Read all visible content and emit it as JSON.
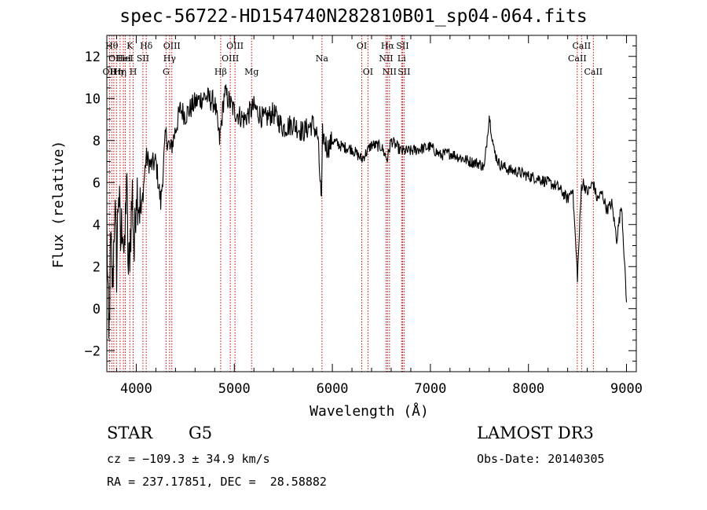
{
  "chart_data": {
    "type": "line",
    "title": "spec-56722-HD154740N282810B01_sp04-064.fits",
    "xlabel": "Wavelength (Å)",
    "ylabel": "Flux (relative)",
    "xlim": [
      3700,
      9100
    ],
    "ylim": [
      -3,
      13
    ],
    "xticks": [
      4000,
      5000,
      6000,
      7000,
      8000,
      9000
    ],
    "yticks": [
      -2,
      0,
      2,
      4,
      6,
      8,
      10,
      12
    ],
    "grid": false,
    "series": [
      {
        "name": "spectrum",
        "x": [
          3700,
          3720,
          3740,
          3760,
          3780,
          3800,
          3820,
          3840,
          3860,
          3880,
          3900,
          3920,
          3940,
          3960,
          3980,
          4000,
          4050,
          4100,
          4150,
          4200,
          4250,
          4300,
          4350,
          4400,
          4450,
          4500,
          4600,
          4700,
          4800,
          4850,
          4900,
          5000,
          5100,
          5200,
          5300,
          5400,
          5500,
          5600,
          5700,
          5800,
          5850,
          5890,
          5900,
          5950,
          6000,
          6100,
          6200,
          6300,
          6400,
          6500,
          6560,
          6600,
          6700,
          6800,
          6900,
          7000,
          7100,
          7200,
          7300,
          7400,
          7500,
          7550,
          7600,
          7650,
          7700,
          7800,
          7900,
          8000,
          8100,
          8200,
          8300,
          8400,
          8450,
          8500,
          8540,
          8560,
          8600,
          8660,
          8700,
          8750,
          8800,
          8850,
          8900,
          8950,
          9000
        ],
        "values": [
          4.0,
          -2.0,
          3.0,
          1.0,
          5.0,
          2.0,
          6.0,
          3.0,
          4.5,
          2.0,
          6.5,
          1.5,
          3.5,
          5.5,
          2.5,
          6.0,
          4.5,
          7.2,
          6.8,
          7.0,
          5.0,
          8.3,
          7.5,
          8.5,
          9.5,
          9.2,
          9.8,
          10.1,
          9.8,
          8.0,
          10.3,
          9.4,
          9.0,
          9.6,
          9.0,
          9.3,
          8.6,
          8.8,
          8.4,
          8.8,
          8.2,
          4.9,
          8.3,
          7.6,
          8.0,
          7.7,
          7.6,
          7.1,
          7.8,
          7.7,
          7.1,
          8.0,
          7.5,
          7.5,
          7.6,
          7.7,
          7.3,
          7.4,
          7.2,
          7.0,
          6.9,
          6.7,
          9.2,
          7.5,
          6.9,
          6.6,
          6.5,
          6.3,
          6.2,
          6.0,
          5.8,
          5.2,
          5.8,
          1.5,
          5.8,
          6.0,
          5.5,
          6.0,
          5.2,
          5.5,
          4.7,
          5.0,
          3.3,
          5.0,
          0.3
        ]
      }
    ],
    "lines": [
      {
        "x": 3727,
        "label": "OII",
        "row": 3
      },
      {
        "x": 3750,
        "label": "Hθ",
        "row": 1
      },
      {
        "x": 3771,
        "label": "OI",
        "row": 2
      },
      {
        "x": 3798,
        "label": "Hη",
        "row": 3
      },
      {
        "x": 3835,
        "label": "Hη",
        "row": 3
      },
      {
        "x": 3869,
        "label": "HeI",
        "row": 2
      },
      {
        "x": 3889,
        "label": "HeI",
        "row": 2
      },
      {
        "x": 3934,
        "label": "K",
        "row": 1
      },
      {
        "x": 3969,
        "label": "H",
        "row": 3
      },
      {
        "x": 4068,
        "label": "SII",
        "row": 2
      },
      {
        "x": 4102,
        "label": "Hδ",
        "row": 1
      },
      {
        "x": 4304,
        "label": "G",
        "row": 3
      },
      {
        "x": 4340,
        "label": "Hγ",
        "row": 2
      },
      {
        "x": 4363,
        "label": "OIII",
        "row": 1
      },
      {
        "x": 4861,
        "label": "Hβ",
        "row": 3
      },
      {
        "x": 4959,
        "label": "OIII",
        "row": 2
      },
      {
        "x": 5007,
        "label": "OIII",
        "row": 1
      },
      {
        "x": 5176,
        "label": "Mg",
        "row": 3
      },
      {
        "x": 5894,
        "label": "Na",
        "row": 2
      },
      {
        "x": 6300,
        "label": "OI",
        "row": 1
      },
      {
        "x": 6363,
        "label": "OI",
        "row": 3
      },
      {
        "x": 6548,
        "label": "NII",
        "row": 2
      },
      {
        "x": 6563,
        "label": "Hα",
        "row": 1
      },
      {
        "x": 6583,
        "label": "NII",
        "row": 3
      },
      {
        "x": 6707,
        "label": "Li",
        "row": 2
      },
      {
        "x": 6716,
        "label": "SII",
        "row": 1
      },
      {
        "x": 6731,
        "label": "SII",
        "row": 3
      },
      {
        "x": 8498,
        "label": "CaII",
        "row": 2
      },
      {
        "x": 8542,
        "label": "CaII",
        "row": 1
      },
      {
        "x": 8662,
        "label": "CaII",
        "row": 3
      }
    ]
  },
  "footer": {
    "class": "STAR",
    "subclass": "G5",
    "survey": "LAMOST DR3",
    "cz": "cz = −109.3 ± 34.9 km/s",
    "obs_date": "Obs-Date: 20140305",
    "radec": "RA = 237.17851, DEC =  28.58882"
  },
  "colors": {
    "spectrum": "#000000",
    "lines": "#cc0000",
    "axes": "#000000"
  }
}
